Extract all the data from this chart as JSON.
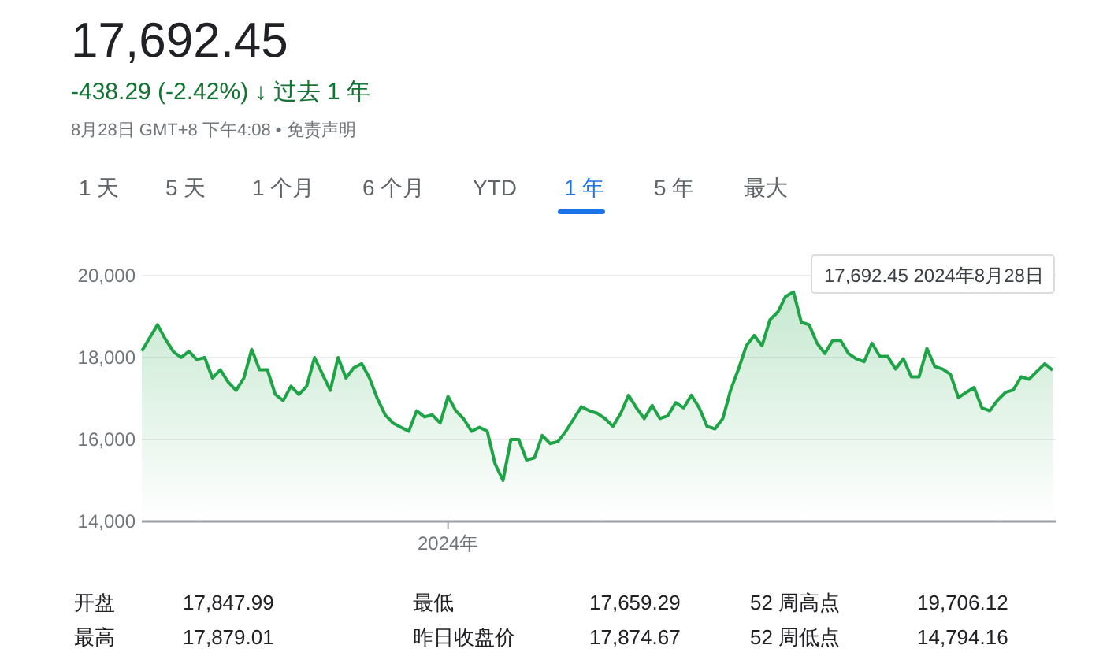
{
  "chart_data": {
    "type": "area",
    "title": "17,692.45",
    "subtitle": "-438.29 (-2.42%) ↓ 过去 1 年",
    "color": "#1ea446",
    "grid": "y",
    "ylim": [
      14000,
      20000
    ],
    "yticks": [
      {
        "value": 14000,
        "label": "14,000"
      },
      {
        "value": 16000,
        "label": "16,000"
      },
      {
        "value": 18000,
        "label": "18,000"
      },
      {
        "value": 20000,
        "label": "20,000"
      }
    ],
    "categories": [
      null,
      null,
      null,
      null,
      null,
      null,
      null,
      null,
      null,
      null,
      null,
      null,
      null,
      null,
      null,
      null,
      null,
      null,
      null,
      null,
      null,
      null,
      null,
      null,
      null,
      null,
      null,
      null,
      null,
      null,
      null,
      null,
      null,
      null,
      null,
      null,
      null,
      null,
      null,
      "2024年",
      null,
      null,
      null,
      null,
      null,
      null,
      null,
      null,
      null,
      null,
      null,
      null,
      null,
      null,
      null,
      null,
      null,
      null,
      null,
      null,
      null,
      null,
      null,
      null,
      null,
      null,
      null,
      null,
      null,
      null,
      null,
      null,
      null,
      null,
      null,
      null,
      null,
      null,
      null,
      null,
      null,
      null,
      null,
      null,
      null,
      null,
      null,
      null,
      null,
      null,
      null,
      null,
      null,
      null,
      null,
      null,
      null,
      null,
      null,
      null,
      null,
      null,
      null,
      null,
      null,
      null,
      null,
      null,
      null,
      null,
      null,
      null,
      null,
      null,
      null,
      null,
      null
    ],
    "values": [
      18160,
      18480,
      18800,
      18450,
      18150,
      18000,
      18150,
      17950,
      18000,
      17500,
      17700,
      17400,
      17200,
      17500,
      18200,
      17700,
      17700,
      17100,
      16950,
      17300,
      17100,
      17300,
      18000,
      17600,
      17200,
      18000,
      17500,
      17750,
      17850,
      17500,
      17000,
      16600,
      16400,
      16300,
      16200,
      16700,
      16550,
      16600,
      16400,
      17050,
      16700,
      16500,
      16200,
      16300,
      16200,
      15400,
      15000,
      16000,
      16000,
      15500,
      15550,
      16100,
      15900,
      15950,
      16200,
      16500,
      16800,
      16700,
      16640,
      16510,
      16320,
      16640,
      17080,
      16770,
      16510,
      16830,
      16510,
      16580,
      16900,
      16770,
      17080,
      16770,
      16320,
      16260,
      16510,
      17210,
      17720,
      18290,
      18540,
      18290,
      18920,
      19110,
      19490,
      19600,
      18860,
      18800,
      18350,
      18100,
      18420,
      18420,
      18100,
      17970,
      17900,
      18350,
      18030,
      18030,
      17720,
      17970,
      17530,
      17530,
      18220,
      17780,
      17720,
      17590,
      17020,
      17150,
      17270,
      16770,
      16700,
      16960,
      17150,
      17210,
      17530,
      17470,
      17660,
      17850,
      17692.45
    ],
    "annotations": [
      "8月28日 GMT+8 下午4:08 • 免责声明",
      "1 天",
      "5 天",
      "1 个月",
      "6 个月",
      "YTD",
      "1 年",
      "5 年",
      "最大",
      "17,692.45  2024年8月28日",
      "开盘",
      "17,847.99",
      "最低",
      "17,659.29",
      "52 周高点",
      "19,706.12",
      "最高",
      "17,879.01",
      "昨日收盘价",
      "17,874.67",
      "52 周低点",
      "14,794.16"
    ]
  }
}
